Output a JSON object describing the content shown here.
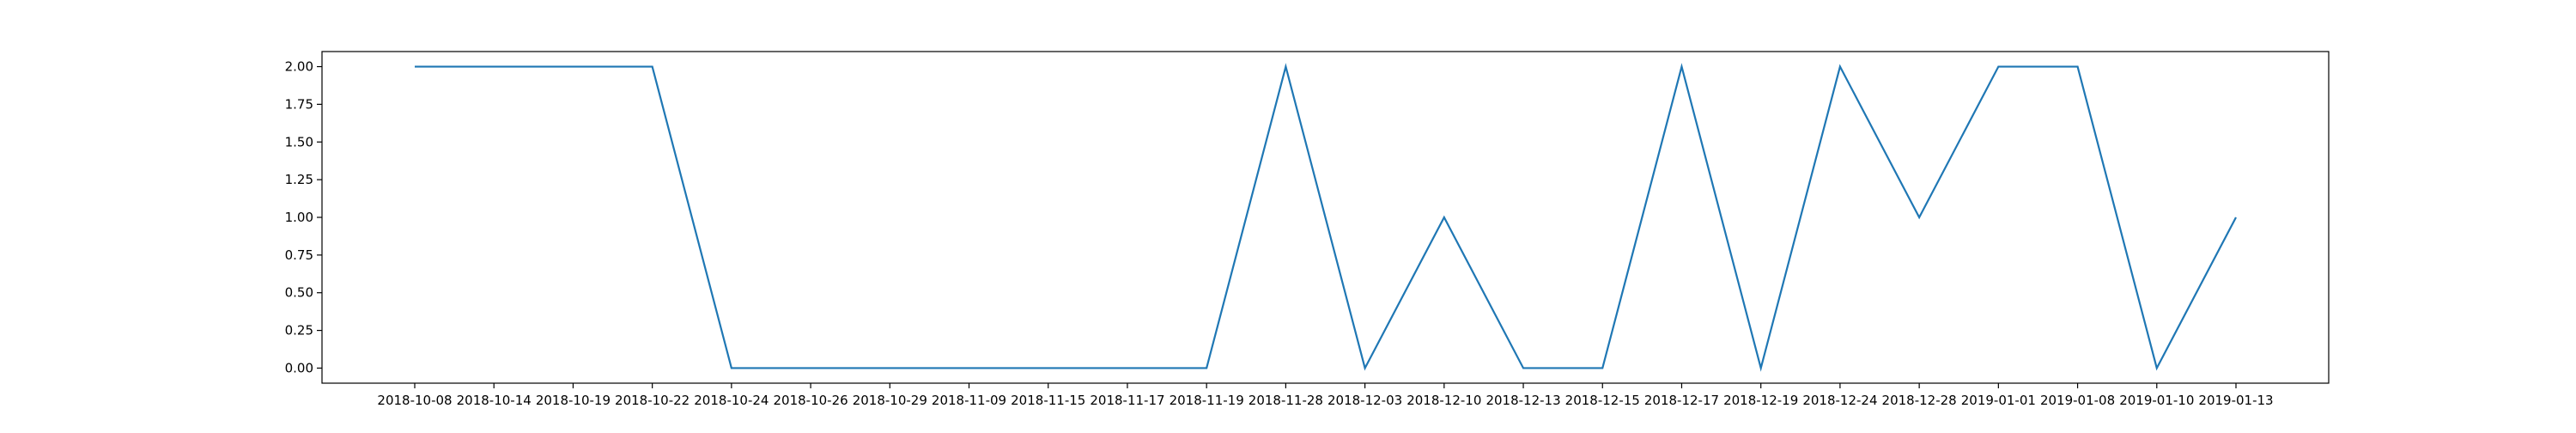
{
  "chart_data": {
    "type": "line",
    "title": "",
    "xlabel": "",
    "ylabel": "",
    "x": [
      "2018-10-08",
      "2018-10-14",
      "2018-10-19",
      "2018-10-22",
      "2018-10-24",
      "2018-10-26",
      "2018-10-29",
      "2018-11-09",
      "2018-11-15",
      "2018-11-17",
      "2018-11-19",
      "2018-11-28",
      "2018-12-03",
      "2018-12-10",
      "2018-12-13",
      "2018-12-15",
      "2018-12-17",
      "2018-12-19",
      "2018-12-24",
      "2018-12-28",
      "2019-01-01",
      "2019-01-08",
      "2019-01-10",
      "2019-01-13"
    ],
    "series": [
      {
        "values": [
          2,
          2,
          2,
          2,
          0,
          0,
          0,
          0,
          0,
          0,
          0,
          2,
          0,
          1,
          0,
          0,
          2,
          0,
          2,
          1,
          2,
          2,
          0,
          1
        ],
        "color": "#1f77b4"
      }
    ],
    "ylim": [
      -0.1,
      2.1
    ],
    "yticks": [
      "0.00",
      "0.25",
      "0.50",
      "0.75",
      "1.00",
      "1.25",
      "1.50",
      "1.75",
      "2.00"
    ],
    "grid": false,
    "legend": false
  }
}
